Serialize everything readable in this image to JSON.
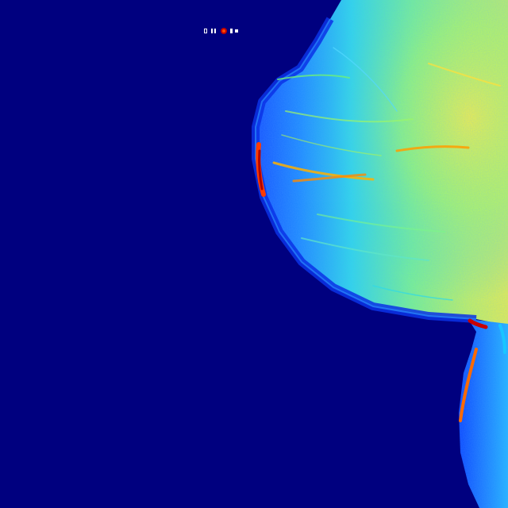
{
  "image": {
    "kind": "false-color mammogram",
    "colormap": "jet",
    "palette": {
      "background": "#00007f",
      "low": "#0a3cff",
      "mid_low": "#1e90ff",
      "mid": "#2fe0e6",
      "mid_high": "#7dff7a",
      "high": "#f4f33a",
      "peak": "#ff3b00",
      "max": "#b00000"
    }
  }
}
